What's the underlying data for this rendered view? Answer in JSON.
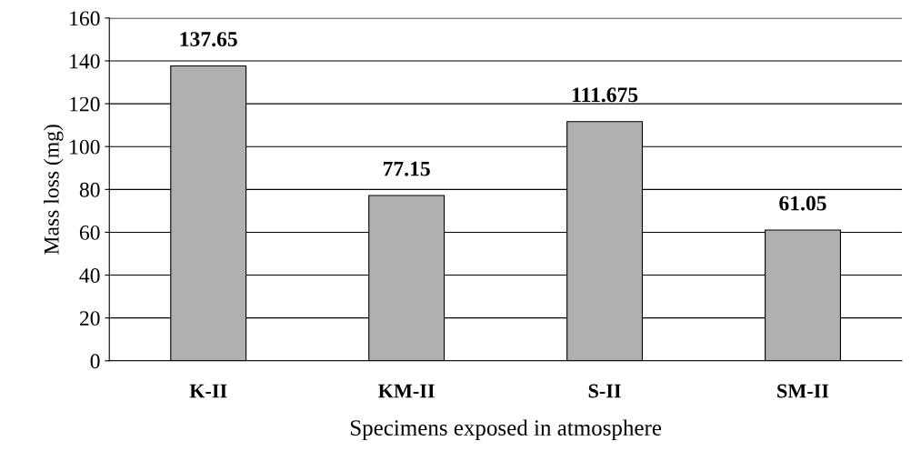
{
  "chart_data": {
    "type": "bar",
    "xlabel": "Specimens exposed in atmosphere",
    "ylabel": "Mass loss (mg)",
    "categories": [
      "K-II",
      "KM-II",
      "S-II",
      "SM-II"
    ],
    "values": [
      137.65,
      77.15,
      111.675,
      61.05
    ],
    "color": "#b0b0b0",
    "ylim": [
      0,
      160
    ],
    "yticks": [
      0,
      20,
      40,
      60,
      80,
      100,
      120,
      140,
      160
    ],
    "grid": "y",
    "data_labels": true
  }
}
